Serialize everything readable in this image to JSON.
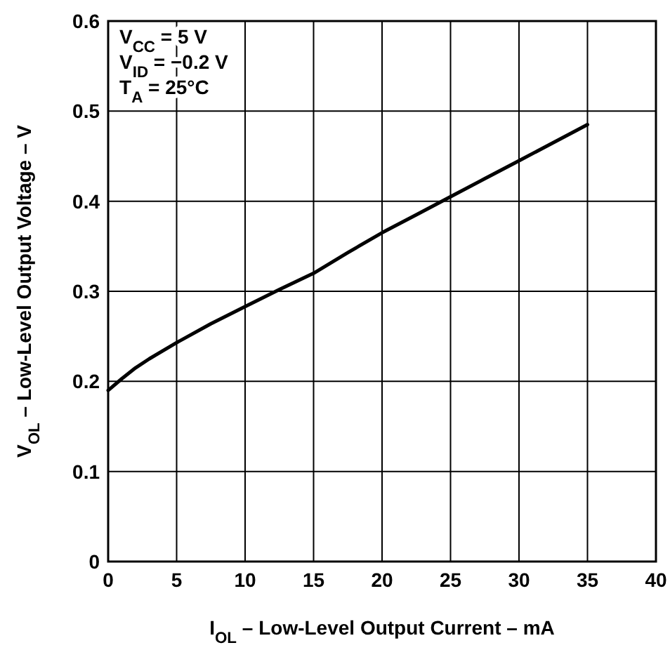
{
  "chart_data": {
    "type": "line",
    "xlabel": "I$_{OL}$ – Low-Level Output Current – mA",
    "ylabel": "V$_{OL}$ – Low-Level Output Voltage – V",
    "annotations": [
      "V$_{CC}$ = 5 V",
      "V$_{ID}$ = −0.2 V",
      "T$_{A}$ = 25°C"
    ],
    "series": [
      {
        "color": "#000000",
        "x": [
          0,
          1,
          2,
          3,
          5,
          7.5,
          10,
          12.5,
          15,
          17.5,
          20,
          22.5,
          25,
          27.5,
          30,
          32.5,
          35
        ],
        "values": [
          0.19,
          0.203,
          0.215,
          0.225,
          0.243,
          0.264,
          0.283,
          0.302,
          0.32,
          0.343,
          0.365,
          0.385,
          0.405,
          0.425,
          0.445,
          0.465,
          0.485
        ]
      }
    ],
    "xlim": [
      0,
      40
    ],
    "xticks": [
      0,
      5,
      10,
      15,
      20,
      25,
      30,
      35,
      40
    ],
    "ylim": [
      0,
      0.6
    ],
    "yticks": [
      0,
      0.1,
      0.2,
      0.3,
      0.4,
      0.5,
      0.6
    ],
    "grid": true,
    "marker": "none",
    "line_style": "solid"
  }
}
